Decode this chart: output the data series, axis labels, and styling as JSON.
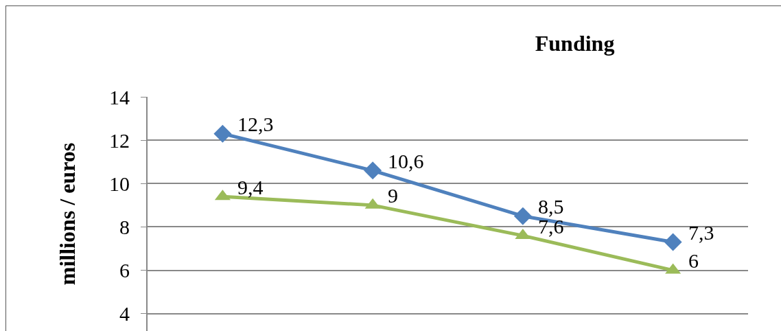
{
  "chart_data": {
    "type": "line",
    "title": "Funding",
    "ylabel": "millions / euros",
    "categories": [
      null,
      null,
      null,
      null
    ],
    "series": [
      {
        "color": "#4f81bd",
        "marker": "diamond",
        "values": [
          12.3,
          10.6,
          8.5,
          7.3
        ],
        "value_labels": [
          "12,3",
          "10,6",
          "8,5",
          "7,3"
        ]
      },
      {
        "color": "#9bbb59",
        "marker": "triangle",
        "values": [
          9.4,
          9,
          7.6,
          6
        ],
        "value_labels": [
          "9,4",
          "9",
          "7,6",
          "6"
        ]
      }
    ],
    "ylim": [
      3.2,
      14
    ],
    "yticks": [
      4,
      6,
      8,
      10,
      12,
      14
    ],
    "grid": "y",
    "tick_labels": "y"
  }
}
